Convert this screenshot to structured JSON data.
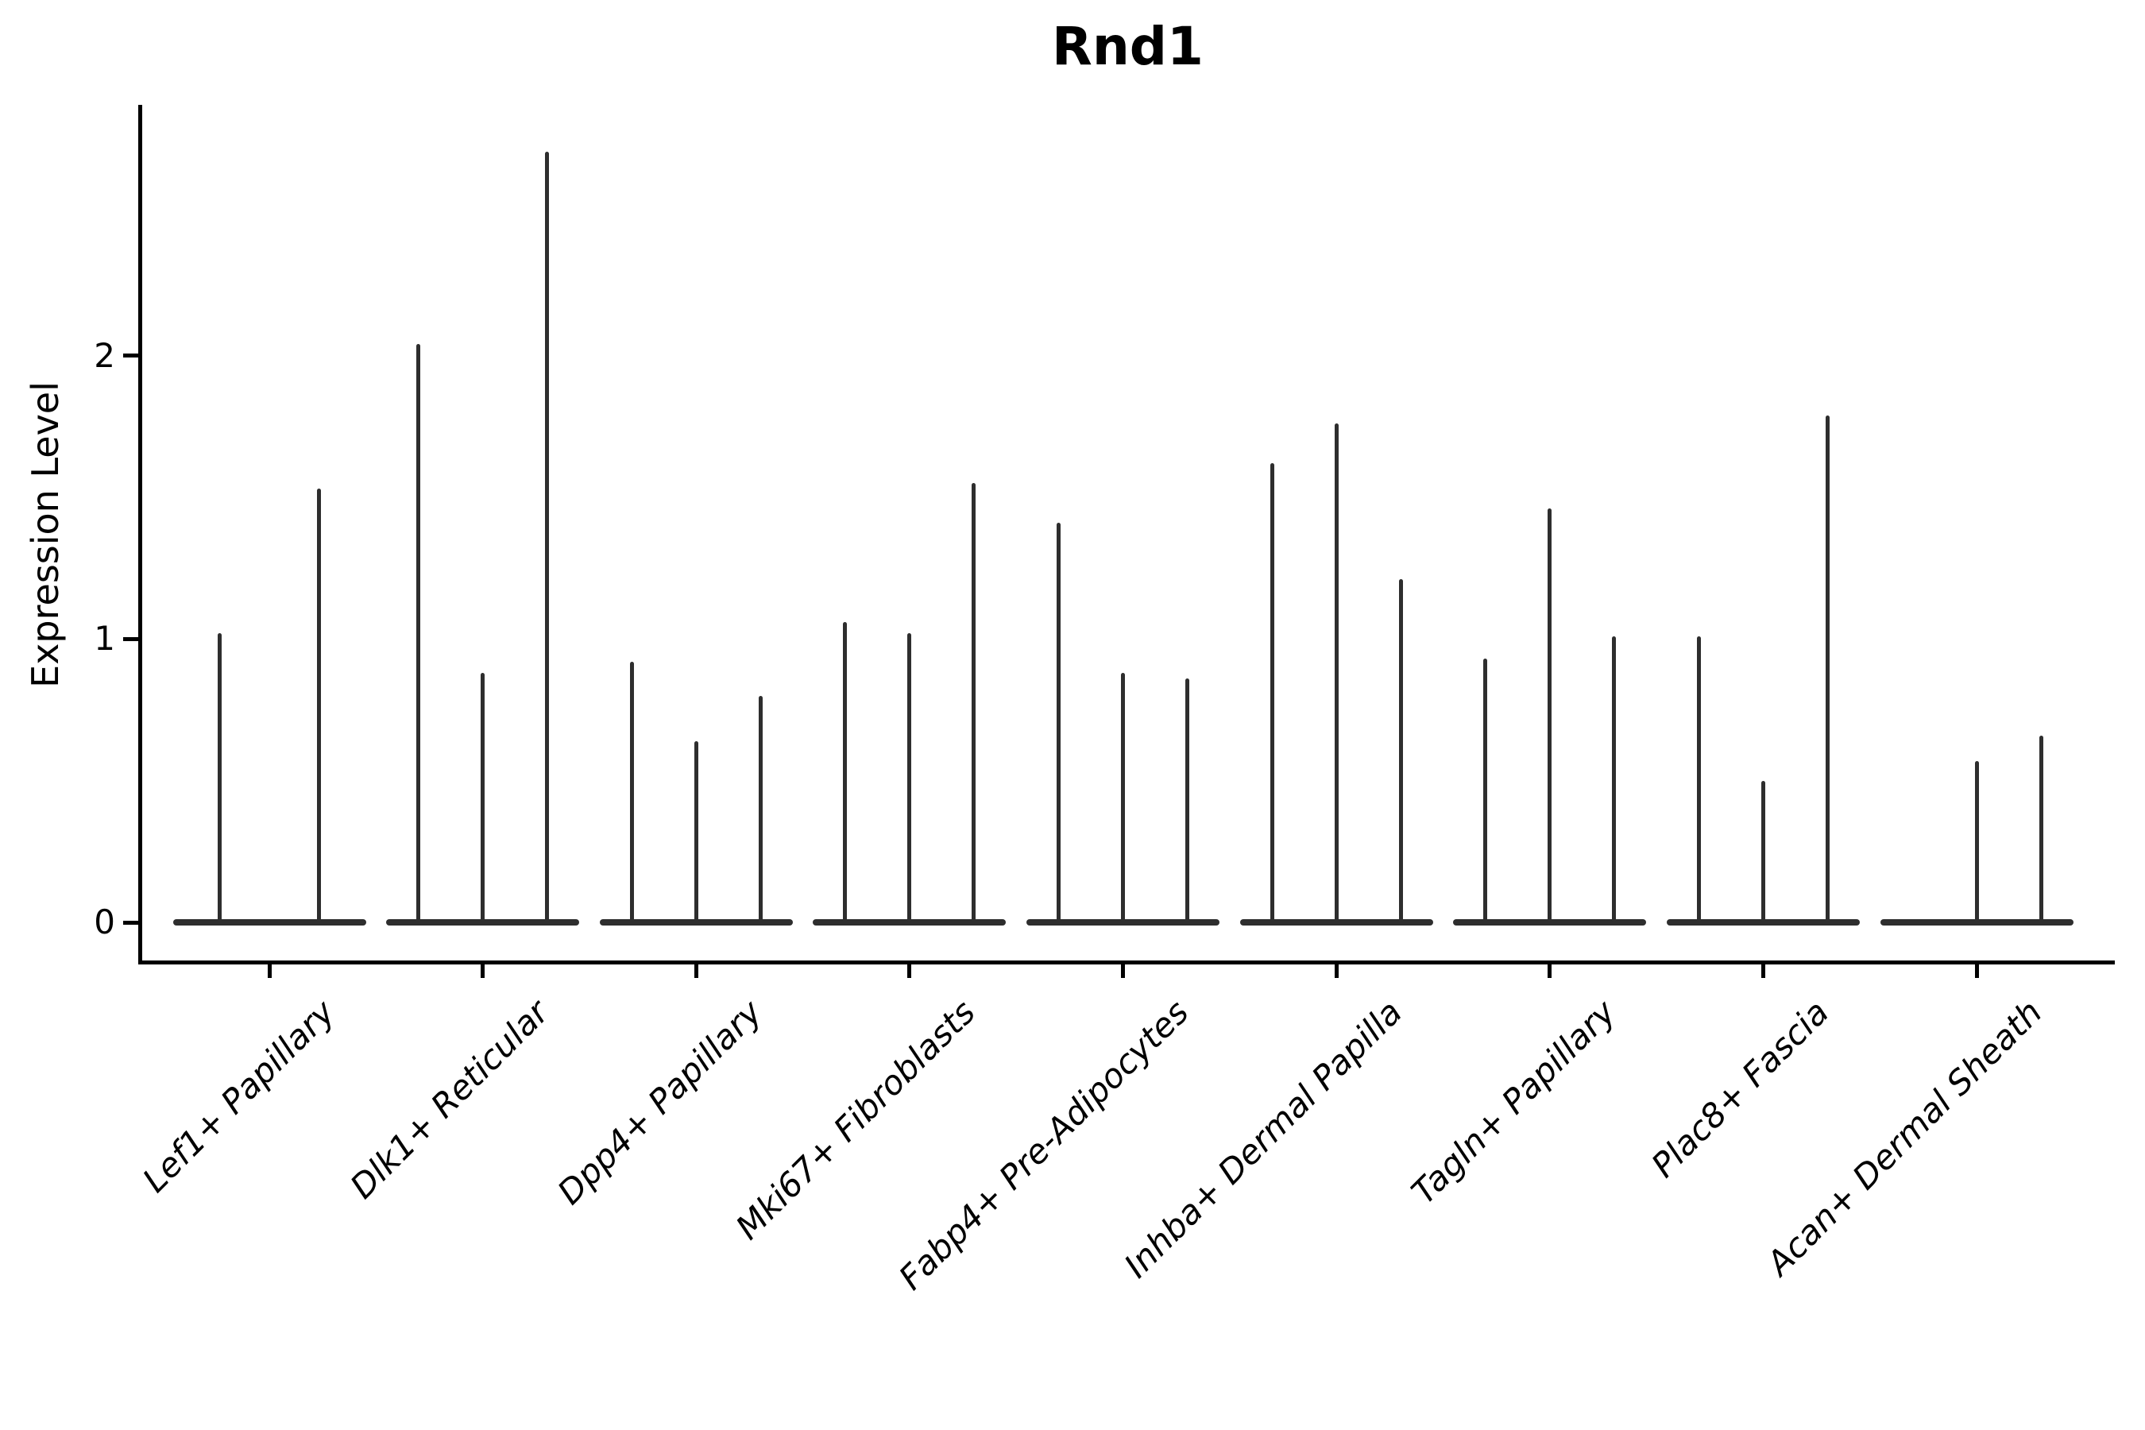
{
  "title": "Rnd1",
  "ylabel": "Expression Level",
  "chart_data": {
    "type": "violin",
    "title": "Rnd1",
    "xlabel": "",
    "ylabel": "Expression Level",
    "ylim": [
      -0.13,
      2.89
    ],
    "yticks": [
      0,
      1,
      2
    ],
    "grid": false,
    "legend": "none",
    "description": "Sparse single-cell expression violins: each category shows thin violins with a wide base at 0 and a thin spike up to the max expression value; 0 means a flat violin with no spike",
    "categories": [
      "Lef1+ Papillary",
      "Dlk1+ Reticular",
      "Dpp4+ Papillary",
      "Mki67+ Fibroblasts",
      "Fabp4+ Pre-Adipocytes",
      "Inhba+ Dermal Papilla",
      "Tagln+ Papillary",
      "Plac8+ Fascia",
      "Acan+ Dermal Sheath"
    ],
    "series": [
      {
        "category": "Lef1+ Papillary",
        "violin_max_values": [
          1.02,
          1.53
        ]
      },
      {
        "category": "Dlk1+ Reticular",
        "violin_max_values": [
          2.04,
          0.88,
          2.72
        ]
      },
      {
        "category": "Dpp4+ Papillary",
        "violin_max_values": [
          0.92,
          0.64,
          0.8
        ]
      },
      {
        "category": "Mki67+ Fibroblasts",
        "violin_max_values": [
          1.06,
          1.02,
          1.55
        ]
      },
      {
        "category": "Fabp4+ Pre-Adipocytes",
        "violin_max_values": [
          1.41,
          0.88,
          0.86
        ]
      },
      {
        "category": "Inhba+ Dermal Papilla",
        "violin_max_values": [
          1.62,
          1.76,
          1.21
        ]
      },
      {
        "category": "Tagln+ Papillary",
        "violin_max_values": [
          0.93,
          1.46,
          1.01
        ]
      },
      {
        "category": "Plac8+ Fascia",
        "violin_max_values": [
          1.01,
          0.5,
          1.79
        ]
      },
      {
        "category": "Acan+ Dermal Sheath",
        "violin_max_values": [
          0,
          0.57,
          0.66
        ]
      }
    ],
    "colors": {
      "violin": "#2e2e2e",
      "axis": "#000000",
      "background": "#ffffff"
    }
  }
}
